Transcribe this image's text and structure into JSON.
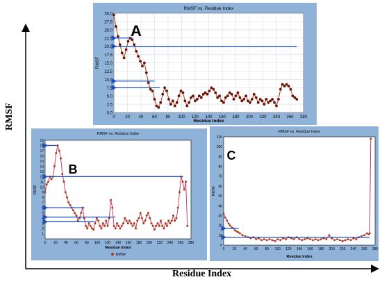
{
  "figure": {
    "ylabel": "RMSF",
    "xlabel": "Residue Index"
  },
  "chart_data": [
    {
      "letter": "A",
      "type": "line",
      "title": "RMSF vs. Residue Index",
      "xlabel": "Residue Index",
      "ylabel": "RMSF",
      "xlim": [
        0,
        280
      ],
      "ylim": [
        0,
        30
      ],
      "xticks": [
        0,
        20,
        40,
        60,
        80,
        100,
        120,
        140,
        160,
        180,
        200,
        220,
        240,
        260,
        280
      ],
      "yticks": [
        0.0,
        2.5,
        5.0,
        7.5,
        10.0,
        12.5,
        15.0,
        17.5,
        20.0,
        22.5,
        25.0,
        27.5,
        30.0
      ],
      "ytick_decimals": 1,
      "grid": true,
      "colors": {
        "line": "#b23a1c",
        "marker": "#6b1206",
        "arrow": "#1f4fb4"
      },
      "x": [
        0,
        3,
        6,
        9,
        12,
        15,
        18,
        21,
        24,
        27,
        30,
        33,
        36,
        39,
        42,
        45,
        48,
        51,
        54,
        57,
        60,
        63,
        66,
        69,
        72,
        75,
        78,
        81,
        84,
        87,
        90,
        93,
        96,
        99,
        102,
        105,
        108,
        111,
        114,
        117,
        120,
        123,
        126,
        129,
        132,
        135,
        138,
        141,
        144,
        147,
        150,
        153,
        156,
        159,
        162,
        165,
        168,
        171,
        174,
        177,
        180,
        183,
        186,
        189,
        192,
        195,
        198,
        201,
        204,
        207,
        210,
        213,
        216,
        219,
        222,
        225,
        228,
        231,
        234,
        237,
        240,
        243,
        246,
        249,
        252,
        255,
        258,
        261,
        264,
        267,
        270
      ],
      "y": [
        29.5,
        26,
        23,
        20.5,
        18,
        16.5,
        19,
        21.5,
        22.5,
        22,
        20.5,
        18.5,
        17,
        15.5,
        14,
        15,
        12,
        9,
        7,
        6.5,
        4,
        2,
        1.5,
        3,
        5.5,
        7.5,
        6.5,
        4,
        2.5,
        3.5,
        2,
        3,
        5,
        6.5,
        6,
        3.5,
        2,
        3,
        4.5,
        5,
        3.5,
        4,
        5,
        4.5,
        5.5,
        6,
        5.5,
        6.5,
        7.5,
        7,
        6,
        4.5,
        5,
        3.5,
        3,
        4.5,
        5,
        6,
        5.5,
        4,
        5,
        6,
        4.5,
        3.5,
        4,
        5,
        3.5,
        3,
        4,
        5.5,
        4.5,
        3,
        4,
        3.5,
        2.5,
        4,
        3,
        3.5,
        4,
        3,
        2,
        4,
        7,
        8.5,
        8,
        8.5,
        8,
        7,
        5,
        4.5,
        4
      ],
      "arrows": [
        {
          "from": 270,
          "to": 0,
          "y": 20
        },
        {
          "from": 27,
          "to": 0,
          "y": 22.5
        },
        {
          "from": 60,
          "to": 0,
          "y": 9.5
        },
        {
          "from": 68,
          "to": 0,
          "y": 7.5
        }
      ]
    },
    {
      "letter": "B",
      "type": "line",
      "title": "RMSF vs. Residue Index",
      "xlabel": "Residue Index",
      "ylabel": "RMSF",
      "legend": "RMSF",
      "xlim": [
        0,
        280
      ],
      "ylim": [
        0,
        19
      ],
      "xticks": [
        0,
        20,
        40,
        60,
        80,
        100,
        120,
        140,
        160,
        180,
        200,
        220,
        240,
        260,
        280
      ],
      "yticks": [
        1,
        2,
        3,
        4,
        5,
        6,
        7,
        8,
        9,
        10,
        11,
        12,
        13,
        14,
        15,
        16,
        17,
        18,
        19
      ],
      "ytick_decimals": 0,
      "grid": false,
      "colors": {
        "line": "#c0446a",
        "marker": "#b23a1c",
        "arrow": "#1f4fb4"
      },
      "x": [
        0,
        3,
        6,
        9,
        12,
        15,
        18,
        21,
        24,
        27,
        30,
        33,
        36,
        39,
        42,
        45,
        48,
        51,
        54,
        57,
        60,
        63,
        66,
        69,
        72,
        75,
        78,
        81,
        84,
        87,
        90,
        93,
        96,
        99,
        102,
        105,
        108,
        111,
        114,
        117,
        120,
        123,
        126,
        129,
        132,
        135,
        138,
        141,
        144,
        147,
        150,
        153,
        156,
        159,
        162,
        165,
        168,
        171,
        174,
        177,
        180,
        183,
        186,
        189,
        192,
        195,
        198,
        201,
        204,
        207,
        210,
        213,
        216,
        219,
        222,
        225,
        228,
        231,
        234,
        237,
        240,
        243,
        246,
        249,
        252,
        255,
        258,
        261,
        264,
        267,
        270,
        273
      ],
      "y": [
        9,
        10.5,
        11,
        12,
        11.5,
        12,
        14,
        16.5,
        18,
        17,
        15.5,
        12.5,
        11,
        9,
        8,
        7,
        6.5,
        6,
        5.5,
        5,
        4.5,
        3.5,
        4,
        5,
        6,
        4,
        2.5,
        2,
        3,
        2.5,
        2,
        1.8,
        3,
        4,
        3.5,
        2.5,
        2,
        3,
        2.5,
        3.5,
        2.5,
        4,
        7.5,
        6,
        2.5,
        2,
        3,
        2.5,
        2,
        2.5,
        3,
        4,
        3.5,
        3,
        3.5,
        3,
        2.5,
        3,
        2,
        3.5,
        4,
        5,
        4,
        3,
        3.5,
        4.5,
        5,
        4,
        3,
        2.5,
        1.8,
        2.5,
        3,
        2.5,
        3.5,
        2.5,
        2,
        3,
        2.5,
        3.5,
        3,
        3.5,
        4.5,
        3.5,
        4,
        6,
        9,
        12,
        11,
        9.5,
        11,
        2.5
      ],
      "arrows": [
        {
          "from": 265,
          "to": 0,
          "y": 12
        },
        {
          "from": 22,
          "to": 0,
          "y": 18
        },
        {
          "from": 75,
          "to": 0,
          "y": 6
        },
        {
          "from": 135,
          "to": 0,
          "y": 4.2
        },
        {
          "from": 95,
          "to": 0,
          "y": 3.3
        }
      ]
    },
    {
      "letter": "C",
      "type": "line",
      "title": "RMSF vs. Residue Index",
      "xlabel": "Residue Index",
      "ylabel": "RMSF",
      "xlim": [
        0,
        280
      ],
      "ylim": [
        0,
        110
      ],
      "xticks": [
        0,
        20,
        40,
        60,
        80,
        100,
        120,
        140,
        160,
        180,
        200,
        220,
        240,
        260,
        280
      ],
      "yticks": [
        0,
        10,
        20,
        30,
        40,
        50,
        60,
        70,
        80,
        90,
        100,
        110
      ],
      "ytick_decimals": 0,
      "grid": false,
      "colors": {
        "line": "#c0446a",
        "marker": "#b23a1c",
        "arrow": "#1f4fb4"
      },
      "x": [
        0,
        3,
        6,
        9,
        12,
        15,
        18,
        21,
        24,
        27,
        30,
        35,
        40,
        45,
        50,
        55,
        60,
        65,
        70,
        75,
        80,
        85,
        90,
        95,
        100,
        105,
        110,
        115,
        120,
        125,
        130,
        135,
        140,
        145,
        150,
        155,
        160,
        165,
        170,
        175,
        180,
        185,
        190,
        195,
        200,
        205,
        210,
        215,
        220,
        225,
        230,
        235,
        240,
        245,
        250,
        255,
        260,
        265,
        268,
        270,
        272
      ],
      "y": [
        32,
        28,
        25,
        22,
        20,
        18,
        17,
        15,
        14,
        13,
        12,
        10,
        9,
        8,
        7,
        8,
        6,
        7,
        5,
        6,
        5,
        6,
        5,
        4,
        6,
        5,
        7,
        6,
        8,
        7,
        6,
        8,
        6,
        5,
        6,
        7,
        6,
        5,
        6,
        5,
        6,
        7,
        6,
        10,
        7,
        5,
        6,
        5,
        4,
        5,
        6,
        5,
        7,
        6,
        8,
        9,
        10,
        12,
        11,
        12,
        108
      ],
      "arrows": [
        {
          "from": 28,
          "to": 0,
          "y": 17
        },
        {
          "from": 270,
          "to": 0,
          "y": 8
        }
      ]
    }
  ]
}
